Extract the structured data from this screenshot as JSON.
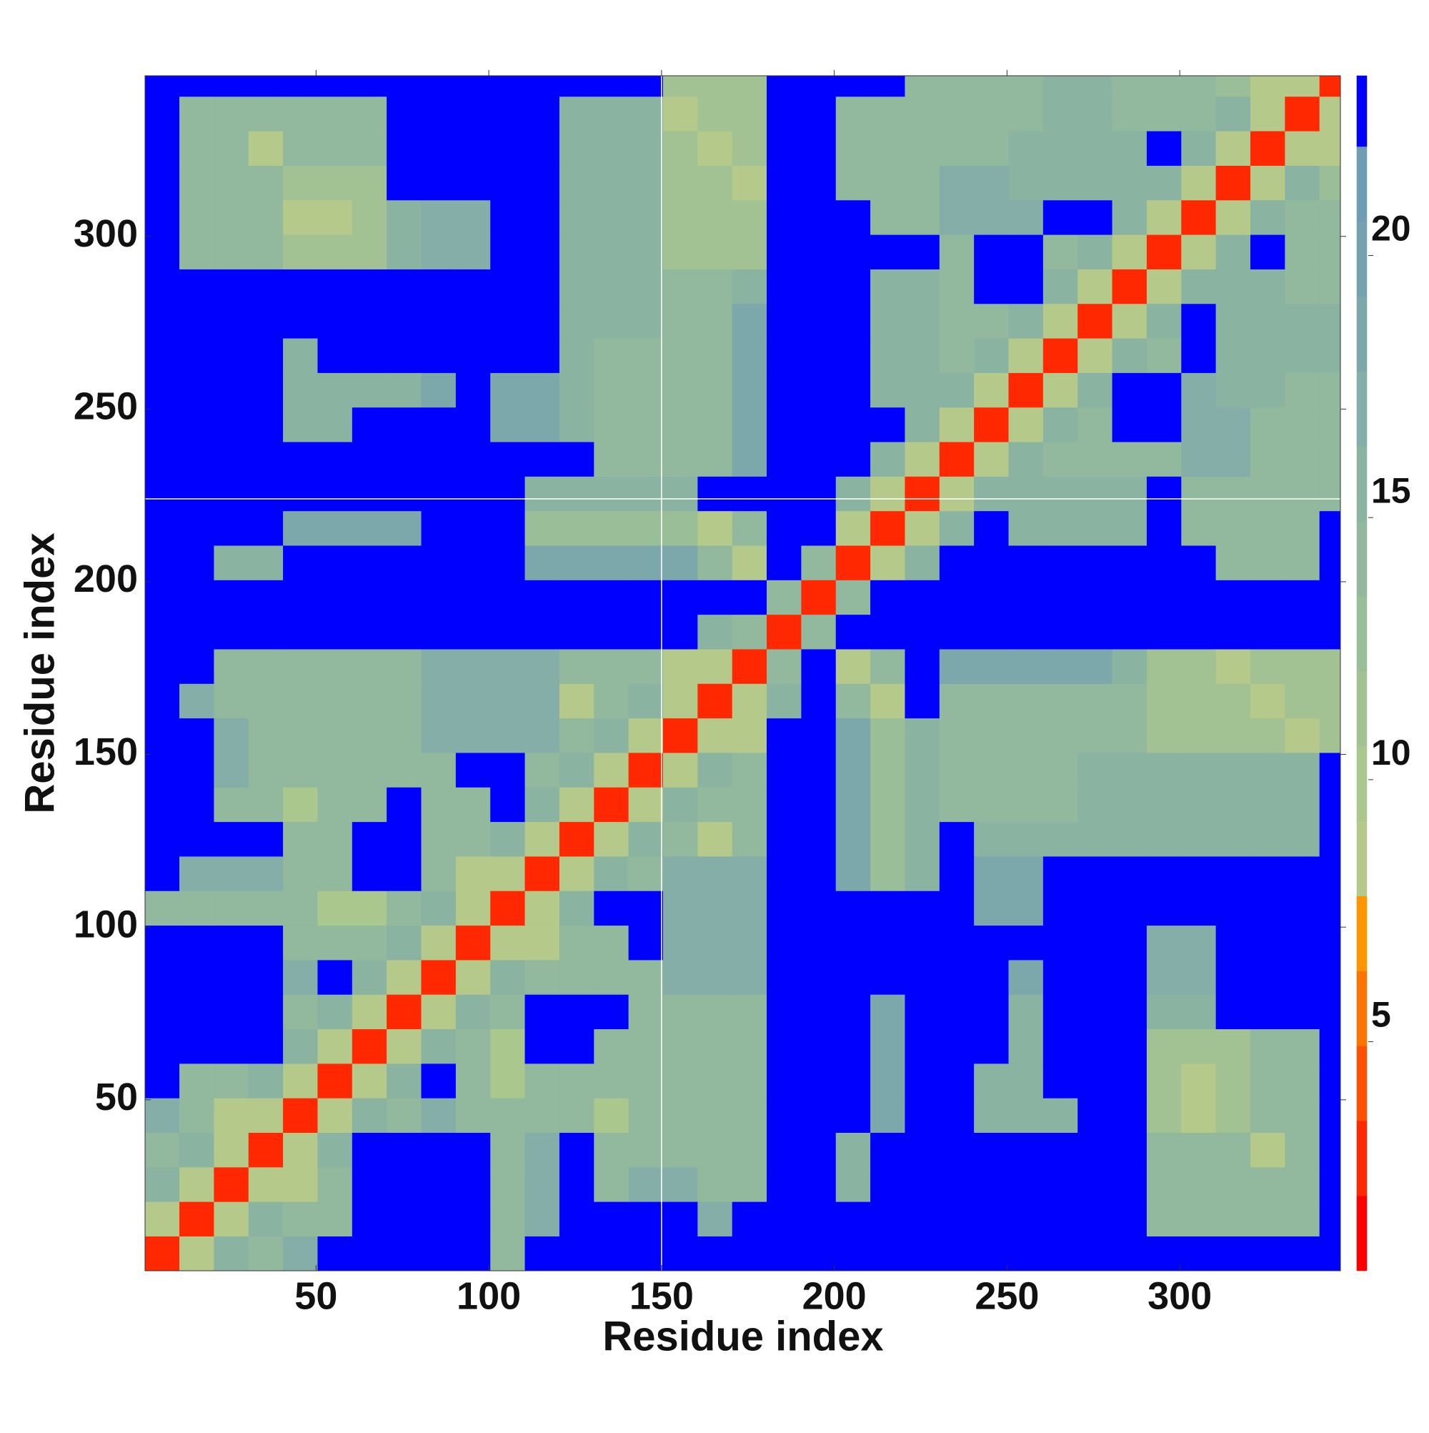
{
  "chart_data": {
    "type": "heatmap",
    "x_label": "Residue index",
    "y_label": "Residue index",
    "xlim": [
      0.5,
      346.5
    ],
    "ylim": [
      0.5,
      346.5
    ],
    "xticks": [
      50,
      100,
      150,
      200,
      250,
      300
    ],
    "yticks": [
      50,
      100,
      150,
      200,
      250,
      300
    ],
    "x_edges": [
      0.5,
      10.5,
      20.5,
      30.5,
      40.5,
      50.5,
      60.5,
      70.5,
      80.5,
      90.5,
      100.5,
      110.5,
      120.5,
      130.5,
      140.5,
      150.5,
      160.5,
      170.5,
      180.5,
      190.5,
      200.5,
      210.5,
      220.5,
      230.5,
      240.5,
      250.5,
      260.5,
      270.5,
      280.5,
      290.5,
      300.5,
      310.5,
      320.5,
      330.5,
      340.5,
      346.5
    ],
    "y_edges": [
      0.5,
      10.5,
      20.5,
      30.5,
      40.5,
      50.5,
      60.5,
      70.5,
      80.5,
      90.5,
      100.5,
      110.5,
      120.5,
      130.5,
      140.5,
      150.5,
      160.5,
      170.5,
      180.5,
      190.5,
      200.5,
      210.5,
      220.5,
      230.5,
      240.5,
      250.5,
      260.5,
      270.5,
      280.5,
      290.5,
      300.5,
      310.5,
      320.5,
      330.5,
      340.5,
      346.5
    ],
    "vlines": [
      150
    ],
    "hlines": [
      224
    ],
    "line_color": "#ffffff",
    "colorbar": {
      "levels": [
        0.63,
        2.06,
        3.49,
        4.92,
        6.35,
        7.78,
        9.21,
        10.64,
        12.07,
        13.5,
        14.93,
        16.36,
        17.79,
        19.22,
        20.65,
        22.08,
        23.43
      ],
      "colors": [
        "#ff0000",
        "#ff2800",
        "#ff5200",
        "#ff7400",
        "#ff9600",
        "#b4c98a",
        "#aac78e",
        "#a2c293",
        "#9abe98",
        "#92b89d",
        "#8bb3a2",
        "#84aea7",
        "#7ca8ab",
        "#75a2af",
        "#6e9cb3",
        "#0000ff"
      ],
      "ticks": [
        5,
        10,
        15,
        20
      ]
    },
    "z": [
      [
        3,
        9,
        15,
        14,
        17,
        23,
        23,
        23,
        23,
        23,
        14,
        23,
        23,
        23,
        23,
        23,
        23,
        23,
        23,
        23,
        23,
        23,
        23,
        23,
        23,
        23,
        23,
        23,
        23,
        23,
        23,
        23,
        23,
        23,
        23
      ],
      [
        9,
        3,
        9,
        15,
        14,
        14,
        23,
        23,
        23,
        23,
        14,
        17,
        23,
        23,
        23,
        23,
        17,
        23,
        23,
        23,
        23,
        23,
        23,
        23,
        23,
        23,
        23,
        23,
        23,
        14,
        14,
        14,
        14,
        14,
        23
      ],
      [
        15,
        9,
        3,
        9,
        9,
        14,
        23,
        23,
        23,
        23,
        14,
        17,
        23,
        14,
        17,
        17,
        14,
        14,
        23,
        23,
        15,
        23,
        23,
        23,
        23,
        23,
        23,
        23,
        23,
        14,
        14,
        14,
        14,
        14,
        23
      ],
      [
        14,
        15,
        9,
        3,
        9,
        15,
        23,
        23,
        23,
        23,
        14,
        17,
        23,
        14,
        14,
        14,
        14,
        14,
        23,
        23,
        15,
        23,
        23,
        23,
        23,
        23,
        23,
        23,
        23,
        14,
        14,
        14,
        9,
        14,
        23
      ],
      [
        17,
        14,
        9,
        9,
        3,
        9,
        15,
        14,
        17,
        14,
        14,
        14,
        14,
        10,
        14,
        14,
        14,
        14,
        23,
        23,
        23,
        18,
        23,
        23,
        16,
        16,
        16,
        23,
        23,
        12,
        9,
        12,
        14,
        14,
        23
      ],
      [
        23,
        14,
        14,
        15,
        9,
        3,
        9,
        15,
        23,
        14,
        10,
        14,
        14,
        14,
        14,
        14,
        14,
        14,
        23,
        23,
        23,
        18,
        23,
        23,
        16,
        16,
        23,
        23,
        23,
        12,
        9,
        12,
        14,
        14,
        23
      ],
      [
        23,
        23,
        23,
        23,
        15,
        9,
        3,
        9,
        15,
        14,
        10,
        23,
        23,
        14,
        14,
        14,
        14,
        14,
        23,
        23,
        23,
        18,
        23,
        23,
        23,
        16,
        23,
        23,
        23,
        12,
        12,
        12,
        14,
        14,
        23
      ],
      [
        23,
        23,
        23,
        23,
        14,
        15,
        9,
        3,
        9,
        15,
        14,
        23,
        23,
        23,
        14,
        14,
        14,
        14,
        23,
        23,
        23,
        18,
        23,
        23,
        23,
        16,
        23,
        23,
        23,
        16,
        16,
        23,
        23,
        23,
        23
      ],
      [
        23,
        23,
        23,
        23,
        17,
        23,
        15,
        9,
        3,
        9,
        15,
        14,
        14,
        14,
        14,
        17,
        17,
        17,
        23,
        23,
        23,
        23,
        23,
        23,
        23,
        19,
        23,
        23,
        23,
        17,
        17,
        23,
        23,
        23,
        23
      ],
      [
        23,
        23,
        23,
        23,
        14,
        14,
        14,
        15,
        9,
        3,
        9,
        9,
        14,
        14,
        23,
        17,
        17,
        17,
        23,
        23,
        23,
        23,
        23,
        23,
        23,
        23,
        23,
        23,
        23,
        17,
        17,
        23,
        23,
        23,
        23
      ],
      [
        14,
        14,
        14,
        14,
        14,
        10,
        10,
        14,
        15,
        9,
        3,
        9,
        15,
        23,
        23,
        17,
        17,
        17,
        23,
        23,
        23,
        23,
        23,
        23,
        19,
        19,
        23,
        23,
        23,
        23,
        23,
        23,
        23,
        23,
        23
      ],
      [
        23,
        17,
        17,
        17,
        14,
        14,
        23,
        23,
        14,
        9,
        9,
        3,
        9,
        15,
        14,
        17,
        17,
        17,
        23,
        23,
        18,
        13,
        16,
        23,
        18,
        18,
        23,
        23,
        23,
        23,
        23,
        23,
        23,
        23,
        23
      ],
      [
        23,
        23,
        23,
        23,
        14,
        14,
        23,
        23,
        14,
        14,
        15,
        9,
        3,
        9,
        15,
        14,
        9,
        14,
        23,
        23,
        18,
        13,
        16,
        23,
        15,
        15,
        15,
        15,
        15,
        15,
        15,
        15,
        15,
        15,
        23
      ],
      [
        23,
        23,
        14,
        14,
        10,
        14,
        14,
        23,
        14,
        14,
        23,
        15,
        9,
        3,
        9,
        15,
        14,
        14,
        23,
        23,
        18,
        13,
        16,
        14,
        14,
        14,
        14,
        15,
        15,
        15,
        15,
        15,
        15,
        15,
        23
      ],
      [
        23,
        23,
        17,
        14,
        14,
        14,
        14,
        14,
        14,
        23,
        23,
        14,
        15,
        9,
        3,
        9,
        15,
        14,
        23,
        23,
        18,
        13,
        16,
        14,
        14,
        14,
        14,
        15,
        15,
        15,
        15,
        15,
        15,
        15,
        23
      ],
      [
        23,
        23,
        17,
        14,
        14,
        14,
        14,
        14,
        17,
        17,
        17,
        17,
        14,
        15,
        9,
        3,
        9,
        9,
        23,
        23,
        18,
        13,
        16,
        14,
        14,
        14,
        14,
        14,
        14,
        12,
        12,
        12,
        12,
        9,
        12
      ],
      [
        23,
        17,
        14,
        14,
        14,
        14,
        14,
        14,
        17,
        17,
        17,
        17,
        9,
        14,
        15,
        9,
        3,
        9,
        15,
        23,
        14,
        8,
        23,
        14,
        14,
        14,
        14,
        14,
        14,
        12,
        12,
        12,
        8,
        12,
        12
      ],
      [
        23,
        23,
        14,
        14,
        14,
        14,
        14,
        14,
        17,
        17,
        17,
        17,
        14,
        14,
        14,
        9,
        9,
        3,
        14,
        23,
        8,
        14,
        23,
        19,
        19,
        19,
        19,
        19,
        16,
        12,
        12,
        9,
        12,
        12,
        12
      ],
      [
        23,
        23,
        23,
        23,
        23,
        23,
        23,
        23,
        23,
        23,
        23,
        23,
        23,
        23,
        23,
        23,
        15,
        14,
        3,
        14,
        23,
        23,
        23,
        23,
        23,
        23,
        23,
        23,
        23,
        23,
        23,
        23,
        23,
        23,
        23
      ],
      [
        23,
        23,
        23,
        23,
        23,
        23,
        23,
        23,
        23,
        23,
        23,
        23,
        23,
        23,
        23,
        23,
        23,
        23,
        14,
        3,
        14,
        23,
        23,
        23,
        23,
        23,
        23,
        23,
        23,
        23,
        23,
        23,
        23,
        23,
        23
      ],
      [
        23,
        23,
        15,
        15,
        23,
        23,
        23,
        23,
        23,
        23,
        23,
        18,
        18,
        18,
        18,
        18,
        14,
        8,
        23,
        14,
        3,
        9,
        15,
        23,
        23,
        23,
        23,
        23,
        23,
        23,
        23,
        14,
        14,
        14,
        23
      ],
      [
        23,
        23,
        23,
        23,
        18,
        18,
        18,
        18,
        23,
        23,
        23,
        13,
        13,
        13,
        13,
        13,
        8,
        14,
        23,
        23,
        9,
        3,
        9,
        15,
        23,
        15,
        15,
        15,
        15,
        23,
        14,
        14,
        14,
        14,
        23
      ],
      [
        23,
        23,
        23,
        23,
        23,
        23,
        23,
        23,
        23,
        23,
        23,
        16,
        16,
        16,
        16,
        16,
        23,
        23,
        23,
        23,
        15,
        9,
        3,
        9,
        15,
        15,
        15,
        15,
        15,
        23,
        14,
        14,
        14,
        14,
        14
      ],
      [
        23,
        23,
        23,
        23,
        23,
        23,
        23,
        23,
        23,
        23,
        23,
        23,
        23,
        14,
        14,
        14,
        14,
        19,
        23,
        23,
        23,
        15,
        9,
        3,
        9,
        15,
        14,
        14,
        14,
        14,
        17,
        17,
        14,
        14,
        14
      ],
      [
        23,
        23,
        23,
        23,
        16,
        16,
        23,
        23,
        23,
        23,
        19,
        18,
        15,
        14,
        14,
        14,
        14,
        19,
        23,
        23,
        23,
        23,
        15,
        9,
        3,
        9,
        15,
        14,
        23,
        23,
        17,
        17,
        14,
        14,
        14
      ],
      [
        23,
        23,
        23,
        23,
        16,
        16,
        16,
        16,
        19,
        23,
        19,
        18,
        15,
        14,
        14,
        14,
        14,
        19,
        23,
        23,
        23,
        15,
        15,
        15,
        9,
        3,
        9,
        15,
        23,
        23,
        17,
        16,
        16,
        14,
        14
      ],
      [
        23,
        23,
        23,
        23,
        16,
        23,
        23,
        23,
        23,
        23,
        23,
        23,
        15,
        14,
        14,
        14,
        14,
        19,
        23,
        23,
        23,
        15,
        15,
        14,
        15,
        9,
        3,
        9,
        15,
        14,
        23,
        16,
        16,
        16,
        16
      ],
      [
        23,
        23,
        23,
        23,
        23,
        23,
        23,
        23,
        23,
        23,
        23,
        23,
        15,
        15,
        15,
        14,
        14,
        19,
        23,
        23,
        23,
        15,
        15,
        14,
        14,
        15,
        9,
        3,
        9,
        15,
        23,
        16,
        16,
        16,
        16
      ],
      [
        23,
        23,
        23,
        23,
        23,
        23,
        23,
        23,
        23,
        23,
        23,
        23,
        15,
        15,
        15,
        14,
        14,
        16,
        23,
        23,
        23,
        15,
        15,
        14,
        23,
        23,
        15,
        9,
        3,
        9,
        15,
        16,
        16,
        14,
        14
      ],
      [
        23,
        14,
        14,
        14,
        12,
        12,
        12,
        16,
        17,
        17,
        23,
        23,
        15,
        15,
        15,
        12,
        12,
        12,
        23,
        23,
        23,
        23,
        23,
        14,
        23,
        23,
        14,
        15,
        9,
        3,
        9,
        15,
        23,
        14,
        14
      ],
      [
        23,
        14,
        14,
        14,
        9,
        9,
        12,
        16,
        17,
        17,
        23,
        23,
        15,
        15,
        15,
        12,
        12,
        12,
        23,
        23,
        23,
        14,
        14,
        17,
        17,
        17,
        23,
        23,
        15,
        9,
        3,
        9,
        15,
        14,
        14
      ],
      [
        23,
        14,
        14,
        14,
        12,
        12,
        12,
        23,
        23,
        23,
        23,
        23,
        15,
        15,
        15,
        12,
        12,
        9,
        23,
        23,
        14,
        14,
        14,
        17,
        17,
        16,
        16,
        16,
        16,
        15,
        9,
        3,
        9,
        15,
        13
      ],
      [
        23,
        14,
        14,
        9,
        14,
        14,
        14,
        23,
        23,
        23,
        23,
        23,
        15,
        15,
        15,
        12,
        8,
        12,
        23,
        23,
        14,
        14,
        14,
        14,
        14,
        16,
        16,
        16,
        16,
        23,
        15,
        9,
        3,
        9,
        9
      ],
      [
        23,
        14,
        14,
        14,
        14,
        14,
        14,
        23,
        23,
        23,
        23,
        23,
        15,
        15,
        15,
        9,
        12,
        12,
        23,
        23,
        14,
        14,
        14,
        14,
        14,
        14,
        16,
        16,
        14,
        14,
        14,
        15,
        9,
        3,
        9
      ],
      [
        23,
        23,
        23,
        23,
        23,
        23,
        23,
        23,
        23,
        23,
        23,
        23,
        23,
        23,
        23,
        12,
        12,
        12,
        23,
        23,
        23,
        23,
        14,
        14,
        14,
        14,
        16,
        16,
        14,
        14,
        14,
        13,
        9,
        9,
        3
      ]
    ]
  }
}
